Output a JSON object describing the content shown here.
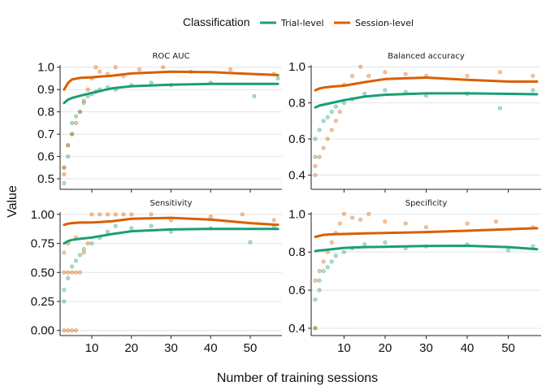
{
  "legend": {
    "title": "Classification",
    "entries": [
      {
        "label": "Trial-level",
        "color": "#1b9e77"
      },
      {
        "label": "Session-level",
        "color": "#d95f02"
      }
    ]
  },
  "xlabel": "Number of training sessions",
  "ylabel": "Value",
  "chart_data": {
    "type": "scatter",
    "layout": "2x2 facets with smoothed trend lines",
    "grid": "horizontal major gridlines",
    "legend_position": "top",
    "xlim": [
      2,
      58
    ],
    "x_ticks": [
      10,
      20,
      30,
      40,
      50
    ],
    "panels": [
      {
        "title": "ROC AUC",
        "ylim": [
          0.46,
          1.01
        ],
        "y_ticks": [
          0.5,
          0.6,
          0.7,
          0.8,
          0.9,
          1.0
        ],
        "y_tick_labels": [
          "0.5",
          "0.6",
          "0.7",
          "0.8",
          "0.9",
          "1.0"
        ],
        "series": [
          {
            "name": "Trial-level",
            "trend_x": [
              3,
              4,
              5,
              7,
              10,
              15,
              20,
              30,
              40,
              50,
              57
            ],
            "trend_y": [
              0.84,
              0.855,
              0.862,
              0.872,
              0.885,
              0.905,
              0.915,
              0.922,
              0.925,
              0.925,
              0.925
            ],
            "points": [
              [
                3,
                0.48
              ],
              [
                3,
                0.55
              ],
              [
                4,
                0.6
              ],
              [
                4,
                0.65
              ],
              [
                5,
                0.7
              ],
              [
                5,
                0.75
              ],
              [
                6,
                0.78
              ],
              [
                7,
                0.8
              ],
              [
                8,
                0.84
              ],
              [
                9,
                0.87
              ],
              [
                10,
                0.88
              ],
              [
                11,
                0.89
              ],
              [
                12,
                0.9
              ],
              [
                14,
                0.91
              ],
              [
                16,
                0.9
              ],
              [
                20,
                0.92
              ],
              [
                25,
                0.93
              ],
              [
                30,
                0.92
              ],
              [
                40,
                0.93
              ],
              [
                51,
                0.87
              ],
              [
                57,
                0.95
              ]
            ]
          },
          {
            "name": "Session-level",
            "trend_x": [
              3,
              4,
              5,
              7,
              10,
              15,
              20,
              30,
              40,
              50,
              57
            ],
            "trend_y": [
              0.9,
              0.93,
              0.945,
              0.952,
              0.955,
              0.962,
              0.972,
              0.98,
              0.978,
              0.97,
              0.965
            ],
            "points": [
              [
                3,
                0.55
              ],
              [
                3,
                0.52
              ],
              [
                4,
                0.65
              ],
              [
                5,
                0.7
              ],
              [
                6,
                0.75
              ],
              [
                7,
                0.8
              ],
              [
                8,
                0.85
              ],
              [
                9,
                0.9
              ],
              [
                10,
                0.95
              ],
              [
                11,
                1.0
              ],
              [
                12,
                0.98
              ],
              [
                14,
                0.97
              ],
              [
                16,
                1.0
              ],
              [
                18,
                0.96
              ],
              [
                22,
                0.99
              ],
              [
                28,
                1.0
              ],
              [
                35,
                0.98
              ],
              [
                45,
                0.99
              ],
              [
                56,
                0.97
              ]
            ]
          }
        ]
      },
      {
        "title": "Balanced accuracy",
        "ylim": [
          0.33,
          1.01
        ],
        "y_ticks": [
          0.4,
          0.6,
          0.8,
          1.0
        ],
        "y_tick_labels": [
          "0.4",
          "0.6",
          "0.8",
          "1.0"
        ],
        "series": [
          {
            "name": "Trial-level",
            "trend_x": [
              3,
              4,
              5,
              7,
              10,
              15,
              20,
              30,
              40,
              50,
              57
            ],
            "trend_y": [
              0.775,
              0.785,
              0.79,
              0.8,
              0.815,
              0.835,
              0.845,
              0.853,
              0.853,
              0.85,
              0.848
            ],
            "points": [
              [
                3,
                0.5
              ],
              [
                3,
                0.6
              ],
              [
                4,
                0.65
              ],
              [
                5,
                0.7
              ],
              [
                6,
                0.72
              ],
              [
                7,
                0.75
              ],
              [
                8,
                0.78
              ],
              [
                10,
                0.8
              ],
              [
                12,
                0.82
              ],
              [
                15,
                0.85
              ],
              [
                20,
                0.87
              ],
              [
                25,
                0.86
              ],
              [
                30,
                0.84
              ],
              [
                40,
                0.85
              ],
              [
                48,
                0.77
              ],
              [
                56,
                0.87
              ]
            ]
          },
          {
            "name": "Session-level",
            "trend_x": [
              3,
              4,
              5,
              7,
              10,
              15,
              20,
              30,
              40,
              50,
              57
            ],
            "trend_y": [
              0.87,
              0.88,
              0.885,
              0.89,
              0.895,
              0.915,
              0.932,
              0.94,
              0.928,
              0.918,
              0.918
            ],
            "points": [
              [
                3,
                0.4
              ],
              [
                3,
                0.45
              ],
              [
                4,
                0.5
              ],
              [
                5,
                0.55
              ],
              [
                6,
                0.6
              ],
              [
                7,
                0.65
              ],
              [
                8,
                0.7
              ],
              [
                9,
                0.75
              ],
              [
                10,
                0.9
              ],
              [
                12,
                0.95
              ],
              [
                14,
                1.0
              ],
              [
                16,
                0.95
              ],
              [
                20,
                0.97
              ],
              [
                25,
                0.96
              ],
              [
                30,
                0.95
              ],
              [
                40,
                0.95
              ],
              [
                48,
                0.97
              ],
              [
                56,
                0.95
              ]
            ]
          }
        ]
      },
      {
        "title": "Sensitivity",
        "ylim": [
          -0.03,
          1.02
        ],
        "y_ticks": [
          0.0,
          0.25,
          0.5,
          0.75,
          1.0
        ],
        "y_tick_labels": [
          "0.00",
          "0.25",
          "0.50",
          "0.75",
          "1.00"
        ],
        "series": [
          {
            "name": "Trial-level",
            "trend_x": [
              3,
              4,
              5,
              7,
              10,
              15,
              20,
              30,
              40,
              50,
              57
            ],
            "trend_y": [
              0.75,
              0.77,
              0.78,
              0.79,
              0.8,
              0.83,
              0.855,
              0.87,
              0.875,
              0.875,
              0.875
            ],
            "points": [
              [
                3,
                0.25
              ],
              [
                3,
                0.35
              ],
              [
                4,
                0.45
              ],
              [
                5,
                0.55
              ],
              [
                6,
                0.6
              ],
              [
                7,
                0.65
              ],
              [
                8,
                0.7
              ],
              [
                10,
                0.75
              ],
              [
                12,
                0.8
              ],
              [
                14,
                0.85
              ],
              [
                16,
                0.9
              ],
              [
                20,
                0.88
              ],
              [
                25,
                0.9
              ],
              [
                30,
                0.85
              ],
              [
                40,
                0.88
              ],
              [
                50,
                0.76
              ],
              [
                56,
                0.9
              ]
            ]
          },
          {
            "name": "Session-level",
            "trend_x": [
              3,
              4,
              5,
              7,
              10,
              15,
              20,
              30,
              40,
              50,
              57
            ],
            "trend_y": [
              0.91,
              0.92,
              0.925,
              0.93,
              0.93,
              0.94,
              0.962,
              0.97,
              0.955,
              0.925,
              0.91
            ],
            "points": [
              [
                3,
                0.0
              ],
              [
                4,
                0.0
              ],
              [
                5,
                0.0
              ],
              [
                6,
                0.0
              ],
              [
                3,
                0.5
              ],
              [
                4,
                0.5
              ],
              [
                5,
                0.5
              ],
              [
                6,
                0.5
              ],
              [
                7,
                0.5
              ],
              [
                3,
                0.67
              ],
              [
                4,
                0.75
              ],
              [
                6,
                0.8
              ],
              [
                8,
                0.67
              ],
              [
                9,
                0.75
              ],
              [
                10,
                1.0
              ],
              [
                12,
                1.0
              ],
              [
                14,
                1.0
              ],
              [
                16,
                1.0
              ],
              [
                18,
                1.0
              ],
              [
                20,
                1.0
              ],
              [
                25,
                1.0
              ],
              [
                30,
                0.95
              ],
              [
                40,
                0.98
              ],
              [
                48,
                1.0
              ],
              [
                56,
                0.95
              ]
            ]
          }
        ]
      },
      {
        "title": "Specificity",
        "ylim": [
          0.37,
          1.01
        ],
        "y_ticks": [
          0.4,
          0.6,
          0.8,
          1.0
        ],
        "y_tick_labels": [
          "0.4",
          "0.6",
          "0.8",
          "1.0"
        ],
        "series": [
          {
            "name": "Trial-level",
            "trend_x": [
              3,
              4,
              5,
              7,
              10,
              15,
              20,
              30,
              40,
              50,
              57
            ],
            "trend_y": [
              0.805,
              0.808,
              0.81,
              0.815,
              0.822,
              0.826,
              0.828,
              0.832,
              0.833,
              0.826,
              0.815
            ],
            "points": [
              [
                3,
                0.4
              ],
              [
                3,
                0.55
              ],
              [
                4,
                0.6
              ],
              [
                4,
                0.65
              ],
              [
                5,
                0.7
              ],
              [
                6,
                0.72
              ],
              [
                7,
                0.75
              ],
              [
                8,
                0.78
              ],
              [
                10,
                0.8
              ],
              [
                12,
                0.82
              ],
              [
                15,
                0.84
              ],
              [
                20,
                0.85
              ],
              [
                25,
                0.82
              ],
              [
                30,
                0.83
              ],
              [
                40,
                0.84
              ],
              [
                50,
                0.81
              ],
              [
                56,
                0.83
              ]
            ]
          },
          {
            "name": "Session-level",
            "trend_x": [
              3,
              4,
              5,
              7,
              10,
              15,
              20,
              30,
              40,
              50,
              57
            ],
            "trend_y": [
              0.88,
              0.885,
              0.89,
              0.893,
              0.895,
              0.898,
              0.9,
              0.905,
              0.912,
              0.92,
              0.925
            ],
            "points": [
              [
                3,
                0.4
              ],
              [
                3,
                0.65
              ],
              [
                4,
                0.7
              ],
              [
                5,
                0.75
              ],
              [
                6,
                0.8
              ],
              [
                7,
                0.85
              ],
              [
                8,
                0.9
              ],
              [
                9,
                0.95
              ],
              [
                10,
                1.0
              ],
              [
                12,
                0.98
              ],
              [
                14,
                0.97
              ],
              [
                16,
                1.0
              ],
              [
                20,
                0.96
              ],
              [
                25,
                0.95
              ],
              [
                30,
                0.93
              ],
              [
                40,
                0.95
              ],
              [
                47,
                0.96
              ],
              [
                56,
                0.93
              ]
            ]
          }
        ]
      }
    ]
  }
}
